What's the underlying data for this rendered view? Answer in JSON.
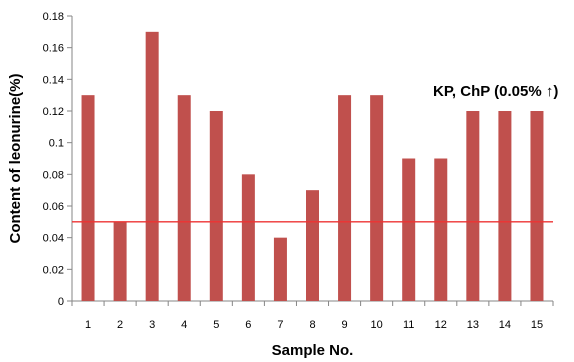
{
  "chart_data": {
    "type": "bar",
    "categories": [
      "1",
      "2",
      "3",
      "4",
      "5",
      "6",
      "7",
      "8",
      "9",
      "10",
      "11",
      "12",
      "13",
      "14",
      "15"
    ],
    "values": [
      0.13,
      0.05,
      0.17,
      0.13,
      0.12,
      0.08,
      0.04,
      0.07,
      0.13,
      0.13,
      0.09,
      0.09,
      0.12,
      0.12,
      0.12
    ],
    "xlabel": "Sample No.",
    "ylabel": "Content of leonurine(%)",
    "ylim": [
      0,
      0.18
    ],
    "yticks": [
      "0",
      "0.02",
      "0.04",
      "0.06",
      "0.08",
      "0.1",
      "0.12",
      "0.14",
      "0.16",
      "0.18"
    ],
    "grid": false,
    "legend": "none",
    "reference_line": {
      "value": 0.05,
      "color": "#ee3333"
    },
    "annotation": "KP, ChP  (0.05% ↑)",
    "bar_color": "#c0504d"
  }
}
